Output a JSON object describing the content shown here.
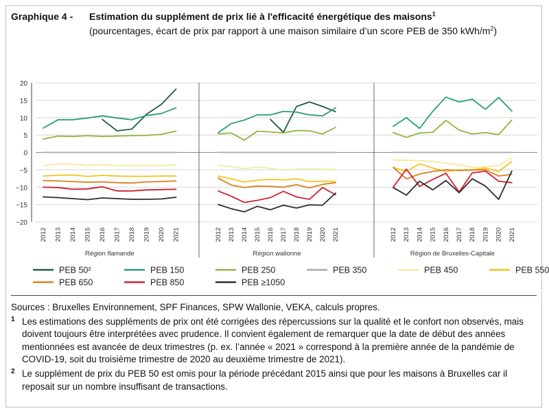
{
  "header": {
    "number": "Graphique 4 -",
    "title_main": "Estimation du supplément de prix lié à l'efficacité énergétique des maisons",
    "title_mark": "1",
    "subtitle": "(pourcentages, écart de prix par rapport à une maison similaire d’un score PEB de 350 kWh/m",
    "subtitle_sup": "2",
    "subtitle_end": ")"
  },
  "chart_data": {
    "type": "line",
    "ylim": [
      -20,
      20
    ],
    "yticks": [
      "20",
      "15",
      "10",
      "5",
      "0",
      "−5",
      "−10",
      "−15",
      "−20"
    ],
    "panels": [
      {
        "name": "Région flamande",
        "years": [
          "2012",
          "2013",
          "2014",
          "2015",
          "2016",
          "2017",
          "2018",
          "2019",
          "2020",
          "2021"
        ]
      },
      {
        "name": "Région wallonne",
        "years": [
          "2012",
          "2013",
          "2014",
          "2015",
          "2016",
          "2017",
          "2018",
          "2019",
          "2020",
          "2021"
        ]
      },
      {
        "name": "Région de Bruxelles-Capitale",
        "years": [
          "2012",
          "2013",
          "2014",
          "2015",
          "2016",
          "2017",
          "2018",
          "2019",
          "2020",
          "2021"
        ]
      }
    ],
    "series": [
      {
        "name": "PEB 50²",
        "color": "#1f5c3e",
        "values": [
          [
            null,
            null,
            null,
            null,
            9.5,
            6.2,
            6.7,
            11,
            13.8,
            18.2
          ],
          [
            null,
            null,
            null,
            null,
            9.5,
            5.8,
            13.2,
            14.5,
            13.2,
            11.7
          ],
          [
            null,
            null,
            null,
            null,
            null,
            null,
            null,
            null,
            null,
            null
          ]
        ]
      },
      {
        "name": "PEB 150",
        "color": "#2a9c7c",
        "values": [
          [
            7,
            9.4,
            9.4,
            9.9,
            10.5,
            9.9,
            9.4,
            10.6,
            11.2,
            12.8
          ],
          [
            5.7,
            8.3,
            9.3,
            10.8,
            10.8,
            11.8,
            11.6,
            10.8,
            10.5,
            12.8
          ],
          [
            7.5,
            10,
            6.9,
            11.8,
            15.9,
            14.5,
            15.3,
            12.4,
            15.8,
            11.9
          ]
        ]
      },
      {
        "name": "PEB 250",
        "color": "#8db43c",
        "values": [
          [
            3.8,
            4.7,
            4.6,
            4.8,
            4.6,
            4.7,
            4.8,
            4.9,
            5.2,
            6.1
          ],
          [
            5.3,
            5.6,
            3.5,
            6.1,
            5.9,
            5.6,
            6.3,
            6.2,
            5.3,
            7.2
          ],
          [
            5.7,
            4.3,
            5.6,
            5.8,
            9.2,
            6.4,
            5.3,
            5.7,
            5.1,
            9.3
          ]
        ]
      },
      {
        "name": "PEB 350",
        "color": "#a8a8a8",
        "values": [
          [
            0,
            0,
            0,
            0,
            0,
            0,
            0,
            0,
            0,
            0
          ],
          [
            0,
            0,
            0,
            0,
            0,
            0,
            0,
            0,
            0,
            0
          ],
          [
            0,
            0,
            0,
            0,
            0,
            0,
            0,
            0,
            0,
            0
          ]
        ]
      },
      {
        "name": "PEB 450",
        "color": "#f6ea9f",
        "values": [
          [
            -3.8,
            -3.3,
            -3.4,
            -3.8,
            -3.5,
            -3.8,
            -3.8,
            -3.8,
            -3.8,
            -3.6
          ],
          [
            -3.7,
            -4.1,
            -4.7,
            -4.2,
            -4.6,
            -5.1,
            -4.8,
            -4.8,
            -4.8,
            -4.9
          ],
          [
            -2.2,
            -2.3,
            -2.4,
            -2.6,
            -3.1,
            -3.6,
            -4.3,
            -4.2,
            -3.7,
            -1.6
          ]
        ]
      },
      {
        "name": "PEB 550",
        "color": "#f2c418",
        "values": [
          [
            -6.8,
            -6.6,
            -6.5,
            -6.9,
            -6.6,
            -6.8,
            -6.9,
            -6.9,
            -6.8,
            -6.8
          ],
          [
            -6.8,
            -7.6,
            -8.5,
            -8,
            -7.8,
            -7.9,
            -7.6,
            -8.4,
            -8.3,
            -8.3
          ],
          [
            -4.3,
            -5.5,
            -3.3,
            -4.5,
            -5.5,
            -5,
            -5,
            -4.5,
            -5.5,
            -2.6
          ]
        ]
      },
      {
        "name": "PEB 650",
        "color": "#d9801c",
        "values": [
          [
            -8.1,
            -8.2,
            -8.4,
            -8.6,
            -8.5,
            -8.7,
            -8.8,
            -8.5,
            -8.4,
            -8.2
          ],
          [
            -7.4,
            -9.4,
            -10.1,
            -9.7,
            -9.8,
            -10,
            -9.3,
            -10.2,
            -9.2,
            -8.7
          ],
          [
            -4.3,
            -7.6,
            -6.2,
            -5.5,
            -5,
            -5.2,
            -5.1,
            -5,
            -6.8,
            -6.3
          ]
        ]
      },
      {
        "name": "PEB 850",
        "color": "#d0202f",
        "values": [
          [
            -10,
            -10.1,
            -10.6,
            -10.5,
            -9.9,
            -11.1,
            -11.1,
            -10.8,
            -10.7,
            -10.6
          ],
          [
            -11.1,
            -12.6,
            -14.4,
            -13.8,
            -13,
            -11.2,
            -12.8,
            -13.5,
            -10.1,
            -12.2
          ],
          [
            -10,
            -4.8,
            -9.8,
            -7.8,
            -6,
            -11.4,
            -5.9,
            -5.4,
            -8.3,
            -8.7
          ]
        ]
      },
      {
        "name": "PEB ≥1050",
        "color": "#2b2b2b",
        "values": [
          [
            -12.8,
            -13,
            -13.3,
            -13.6,
            -13.1,
            -13.3,
            -13.5,
            -13.5,
            -13.4,
            -12.9
          ],
          [
            -15,
            -16.2,
            -17.1,
            -15.5,
            -16.5,
            -15.2,
            -16,
            -15.1,
            -15.2,
            -11.7
          ],
          [
            -10.1,
            -12.3,
            -8.3,
            -10.8,
            -8.1,
            -11.6,
            -7.6,
            -9.7,
            -13.5,
            -5.4
          ]
        ]
      }
    ]
  },
  "sources": "Sources : Bruxelles Environnement, SPF Finances, SPW Wallonie, VEKA, calculs propres.",
  "notes": [
    {
      "mark": "1",
      "text": "Les estimations des suppléments de prix ont été corrigées des répercussions sur la qualité et le confort non observés, mais doivent toujours être interprétées avec prudence. Il convient également de remarquer que la date de début des années mentionnées est avancée de deux trimestres (p. ex. l’année « 2021 » correspond à la première année de la pandémie de COVID-19, soit du troisième trimestre de 2020 au deuxième trimestre de 2021)."
    },
    {
      "mark": "2",
      "text": "Le supplément de prix du PEB 50 est omis pour la période précédant 2015 ainsi que pour les maisons à Bruxelles car il reposait sur un nombre insuffisant de transactions."
    }
  ]
}
